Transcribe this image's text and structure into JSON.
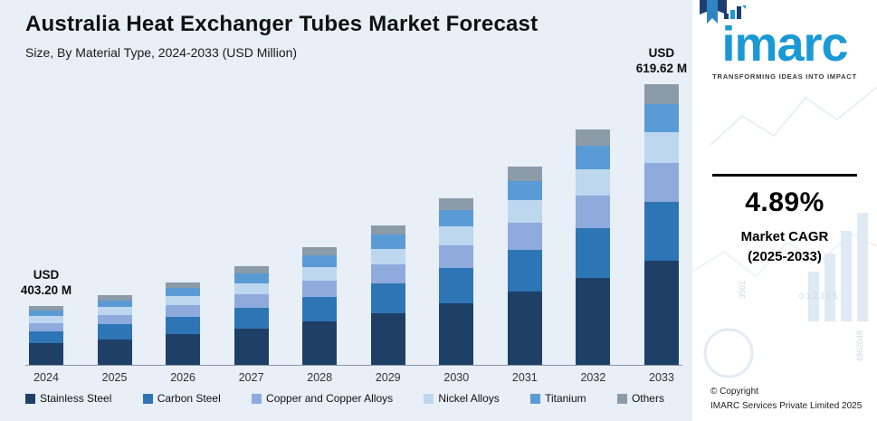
{
  "header": {
    "title": "Australia Heat Exchanger Tubes Market Forecast",
    "subtitle": "Size, By Material Type, 2024-2033 (USD Million)"
  },
  "chart_data": {
    "type": "bar",
    "stacked": true,
    "title": "Australia Heat Exchanger Tubes Market Forecast",
    "subtitle": "Size, By Material Type, 2024-2033 (USD Million)",
    "unit": "USD Million",
    "legend_position": "bottom",
    "categories": [
      "2024",
      "2025",
      "2026",
      "2027",
      "2028",
      "2029",
      "2030",
      "2031",
      "2032",
      "2033"
    ],
    "series": [
      {
        "name": "Stainless Steel",
        "color": "#1F4066",
        "values": [
          149.19,
          156.48,
          164.13,
          172.16,
          180.57,
          189.41,
          198.67,
          208.38,
          218.57,
          229.26
        ]
      },
      {
        "name": "Carbon Steel",
        "color": "#2E75B6",
        "values": [
          84.67,
          88.81,
          93.16,
          97.71,
          102.49,
          107.5,
          112.76,
          118.27,
          124.06,
          130.12
        ]
      },
      {
        "name": "Copper and Copper Alloys",
        "color": "#8FAADC",
        "values": [
          56.45,
          59.21,
          62.1,
          65.14,
          68.33,
          71.67,
          75.17,
          78.85,
          82.7,
          86.75
        ]
      },
      {
        "name": "Nickel Alloys",
        "color": "#BDD7EE",
        "values": [
          44.35,
          46.52,
          48.8,
          51.18,
          53.68,
          56.31,
          59.06,
          61.95,
          64.98,
          68.16
        ]
      },
      {
        "name": "Titanium",
        "color": "#5B9BD5",
        "values": [
          40.32,
          42.29,
          44.36,
          46.53,
          48.8,
          51.19,
          53.69,
          56.32,
          59.07,
          61.96
        ]
      },
      {
        "name": "Others",
        "color": "#8C9BA8",
        "values": [
          28.22,
          29.6,
          31.05,
          32.57,
          34.16,
          35.83,
          37.59,
          39.42,
          41.35,
          43.37
        ]
      }
    ],
    "totals": [
      403.2,
      422.92,
      443.6,
      465.29,
      488.04,
      511.91,
      536.94,
      563.2,
      590.74,
      619.62
    ],
    "value_labels": [
      {
        "year": "2024",
        "lines": [
          "USD",
          "403.20 M"
        ]
      },
      {
        "year": "2033",
        "lines": [
          "USD",
          "619.62 M"
        ]
      }
    ]
  },
  "sidebar": {
    "logo_text": "imarc",
    "tagline": "TRANSFORMING IDEAS INTO IMPACT",
    "cagr": {
      "value": "4.89%",
      "label_line1": "Market CAGR",
      "label_line2": "(2025-2033)"
    },
    "copyright": {
      "line1": "© Copyright",
      "line2": "IMARC Services Private Limited 2025"
    },
    "watermark": [
      "4962048",
      "3501",
      "0 1 2 3 4 5"
    ]
  }
}
